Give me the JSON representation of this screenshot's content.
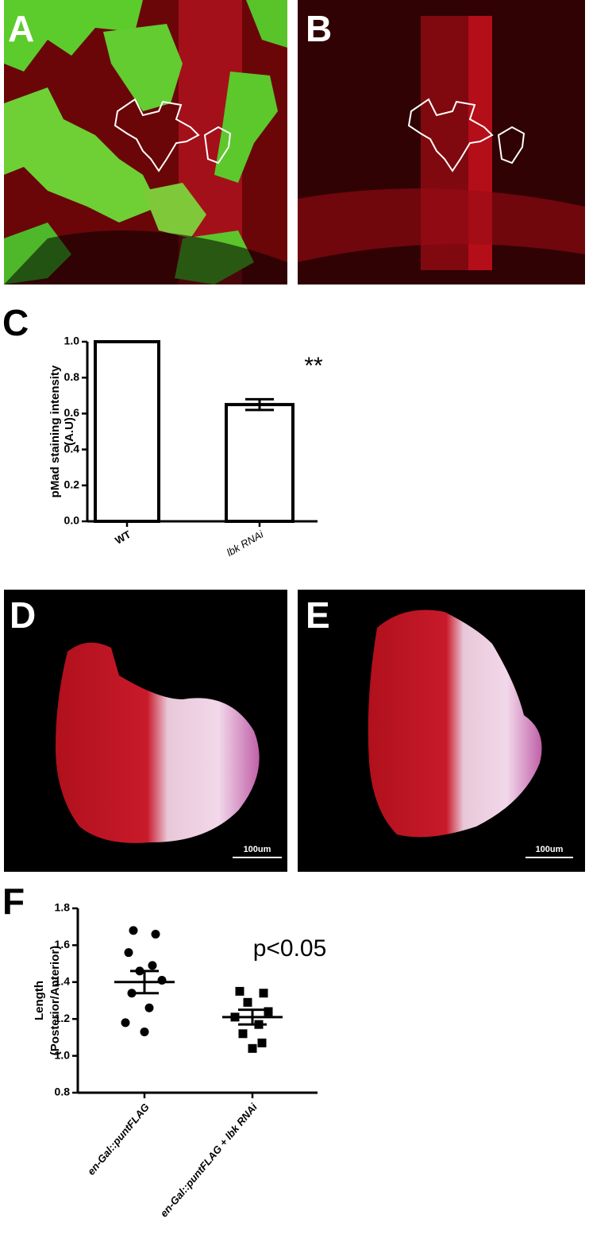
{
  "panel_labels": [
    "A",
    "B",
    "C",
    "D",
    "E",
    "F"
  ],
  "scale_bar_labels": [
    "100um",
    "100um"
  ],
  "chart_data": [
    {
      "type": "bar",
      "ylabel": [
        "pMad staining intensity",
        "(A.U)"
      ],
      "categories": [
        "WT",
        "lbk RNAi"
      ],
      "values": [
        1.0,
        0.65
      ],
      "errors": [
        null,
        0.03
      ],
      "annotation": "**",
      "color": "#ffffff",
      "ylim": [
        0,
        1.0
      ],
      "yticks": [
        {
          "value": 0,
          "label": "0.0"
        },
        {
          "value": 0.2,
          "label": "0.2"
        },
        {
          "value": 0.4,
          "label": "0.4"
        },
        {
          "value": 0.6,
          "label": "0.6"
        },
        {
          "value": 0.8,
          "label": "0.8"
        },
        {
          "value": 1.0,
          "label": "1.0"
        }
      ]
    },
    {
      "type": "scatter",
      "ylabel": [
        "Length",
        "(Posterior/Anterior)"
      ],
      "categories": [
        "en-Gal::puntFLAG",
        "en-Gal::puntFLAG + lbk RNAi"
      ],
      "values": [
        [
          1.68,
          1.66,
          1.56,
          1.49,
          1.46,
          1.41,
          1.34,
          1.26,
          1.18,
          1.13
        ],
        [
          1.35,
          1.34,
          1.29,
          1.24,
          1.21,
          1.17,
          1.12,
          1.07,
          1.04
        ]
      ],
      "means": [
        1.4,
        1.21
      ],
      "sems": [
        0.06,
        0.04
      ],
      "markers": [
        "circle",
        "square"
      ],
      "annotation": "p<0.05",
      "color": "#000000",
      "ylim": [
        0.8,
        1.8
      ],
      "yticks": [
        {
          "value": 0.8,
          "label": "0.8"
        },
        {
          "value": 1.0,
          "label": "1.0"
        },
        {
          "value": 1.2,
          "label": "1.2"
        },
        {
          "value": 1.4,
          "label": "1.4"
        },
        {
          "value": 1.6,
          "label": "1.6"
        },
        {
          "value": 1.8,
          "label": "1.8"
        }
      ]
    }
  ]
}
